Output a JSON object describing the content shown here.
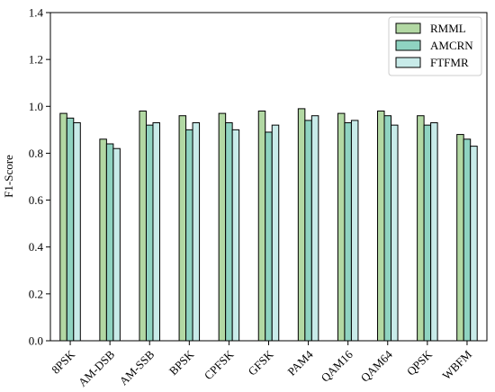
{
  "chart_data": {
    "type": "bar",
    "title": "",
    "xlabel": "",
    "ylabel": "F1-Score",
    "ylim": [
      0,
      1.4
    ],
    "yticks": [
      "0.0",
      "0.2",
      "0.4",
      "0.6",
      "0.8",
      "1.0",
      "1.2",
      "1.4"
    ],
    "grid": false,
    "legend_position": "top-right",
    "categories": [
      "8PSK",
      "AM-DSB",
      "AM-SSB",
      "BPSK",
      "CPFSK",
      "GFSK",
      "PAM4",
      "QAM16",
      "QAM64",
      "QPSK",
      "WBFM"
    ],
    "series": [
      {
        "name": "RMML",
        "color": "#b2d8a3",
        "values": [
          0.97,
          0.86,
          0.98,
          0.96,
          0.97,
          0.98,
          0.99,
          0.97,
          0.98,
          0.96,
          0.88
        ]
      },
      {
        "name": "AMCRN",
        "color": "#8fd3c1",
        "values": [
          0.95,
          0.84,
          0.92,
          0.9,
          0.93,
          0.89,
          0.94,
          0.93,
          0.96,
          0.92,
          0.86
        ]
      },
      {
        "name": "FTFMR",
        "color": "#c8ebe9",
        "values": [
          0.93,
          0.82,
          0.93,
          0.93,
          0.9,
          0.92,
          0.96,
          0.94,
          0.92,
          0.93,
          0.83
        ]
      }
    ]
  }
}
